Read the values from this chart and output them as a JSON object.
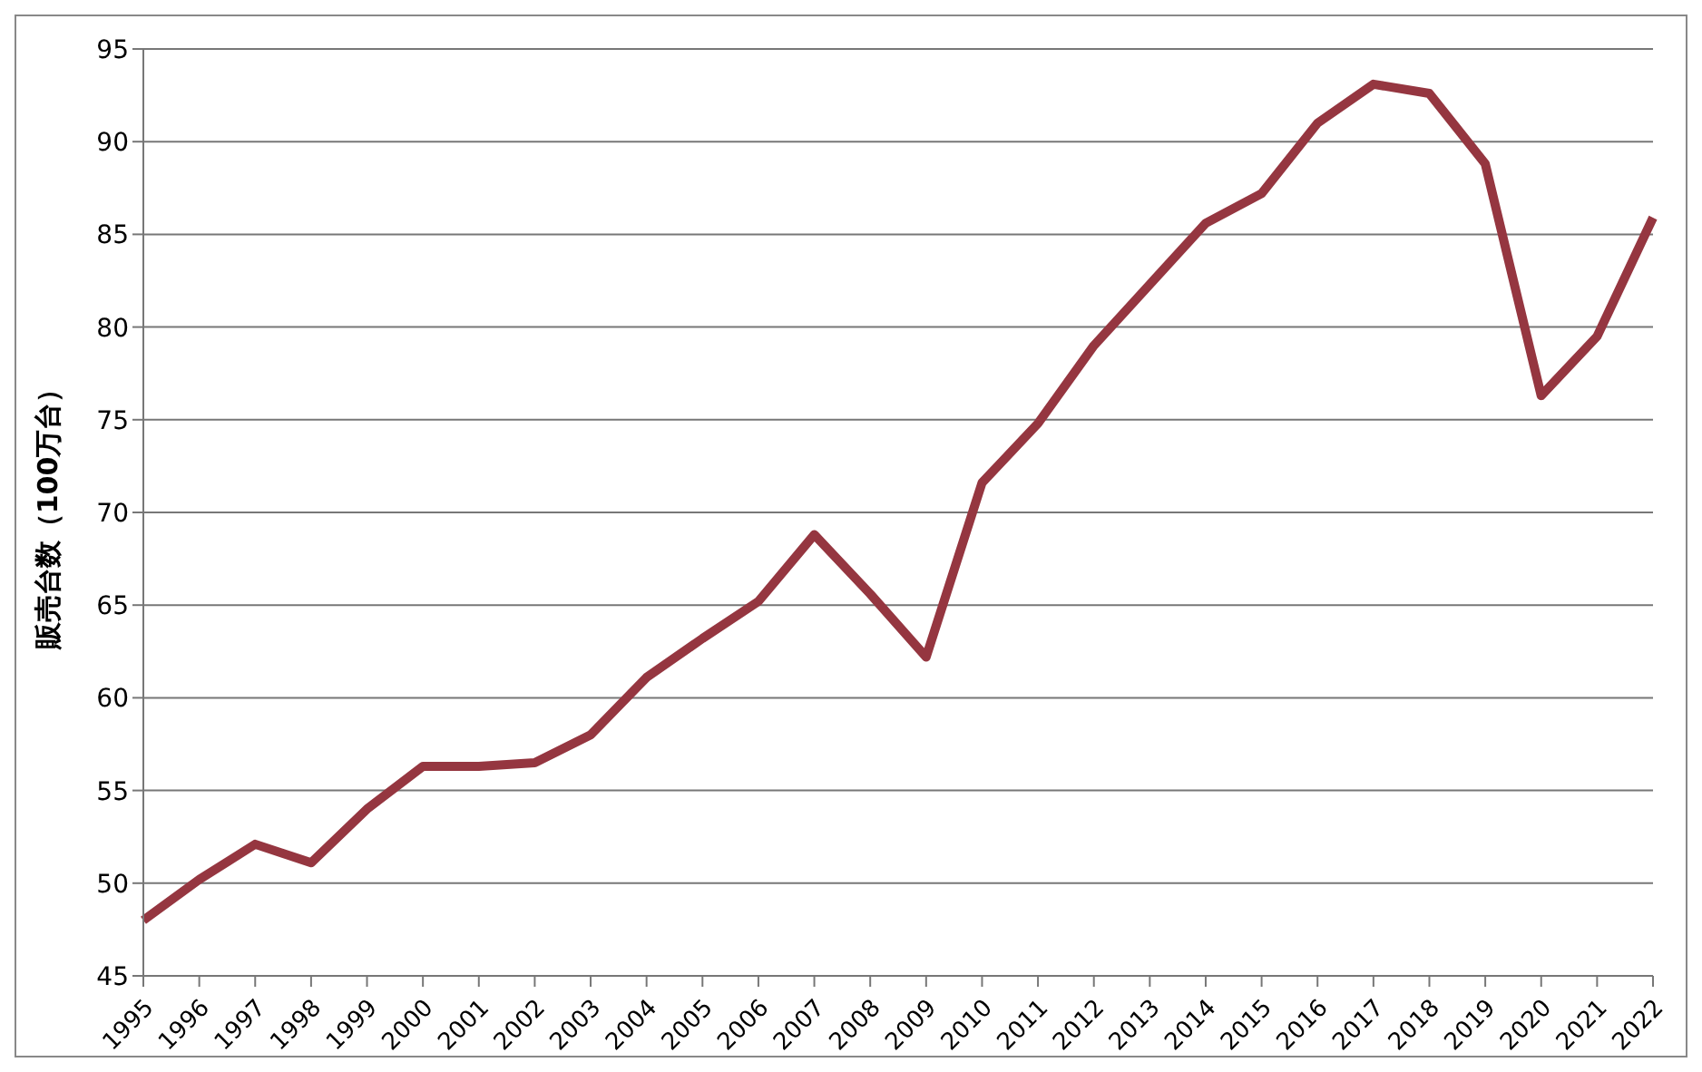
{
  "chart_data": {
    "type": "line",
    "ylabel": "販売台数（100万台）",
    "categories": [
      "1995",
      "1996",
      "1997",
      "1998",
      "1999",
      "2000",
      "2001",
      "2002",
      "2003",
      "2004",
      "2005",
      "2006",
      "2007",
      "2008",
      "2009",
      "2010",
      "2011",
      "2012",
      "2013",
      "2014",
      "2015",
      "2016",
      "2017",
      "2018",
      "2019",
      "2020",
      "2021",
      "2022"
    ],
    "series": [
      {
        "color": "#953640",
        "values": [
          48.0,
          50.2,
          52.1,
          51.1,
          54.0,
          56.3,
          56.3,
          56.5,
          58.0,
          61.1,
          63.2,
          65.2,
          68.8,
          65.6,
          62.2,
          71.6,
          74.8,
          79.0,
          82.3,
          85.6,
          87.2,
          91.0,
          93.1,
          92.6,
          88.8,
          76.3,
          79.5,
          85.9
        ]
      }
    ],
    "ylim": [
      45,
      95
    ],
    "yticks": [
      45,
      50,
      55,
      60,
      65,
      70,
      75,
      80,
      85,
      90,
      95
    ],
    "grid": "y",
    "legend": false,
    "marker": "none",
    "line_style": "solid"
  }
}
